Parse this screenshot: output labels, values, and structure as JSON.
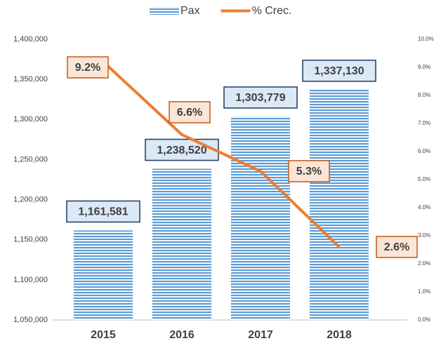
{
  "chart_data": {
    "type": "bar",
    "categories": [
      "2015",
      "2016",
      "2017",
      "2018"
    ],
    "series": [
      {
        "name": "Pax",
        "type": "bar",
        "color": "#5b9bd5",
        "values": [
          1161581,
          1238520,
          1303779,
          1337130
        ],
        "value_labels": [
          "1,161,581",
          "1,238,520",
          "1,303,779",
          "1,337,130"
        ]
      },
      {
        "name": "% Crec.",
        "type": "line",
        "axis": "y2",
        "color": "#ed7d31",
        "values": [
          9.2,
          6.6,
          5.3,
          2.6
        ],
        "value_labels": [
          "9.2%",
          "6.6%",
          "5.3%",
          "2.6%"
        ]
      }
    ],
    "ylim": [
      1050000,
      1400000
    ],
    "yticks": [
      {
        "value": 1050000,
        "label": "1,050,000"
      },
      {
        "value": 1100000,
        "label": "1,100,000"
      },
      {
        "value": 1150000,
        "label": "1,150,000"
      },
      {
        "value": 1200000,
        "label": "1,200,000"
      },
      {
        "value": 1250000,
        "label": "1,250,000"
      },
      {
        "value": 1300000,
        "label": "1,300,000"
      },
      {
        "value": 1350000,
        "label": "1,350,000"
      },
      {
        "value": 1400000,
        "label": "1,400,000"
      }
    ],
    "y2lim": [
      0,
      10
    ],
    "y2ticks": [
      {
        "value": 0,
        "label": "0.0%"
      },
      {
        "value": 1,
        "label": "1.0%"
      },
      {
        "value": 2,
        "label": "2.0%"
      },
      {
        "value": 3,
        "label": "3.0%"
      },
      {
        "value": 4,
        "label": "4.0%"
      },
      {
        "value": 5,
        "label": "5.0%"
      },
      {
        "value": 6,
        "label": "6.0%"
      },
      {
        "value": 7,
        "label": "7.0%"
      },
      {
        "value": 8,
        "label": "8.0%"
      },
      {
        "value": 9,
        "label": "9.0%"
      },
      {
        "value": 10,
        "label": "10.0%"
      }
    ],
    "grid": false,
    "legend": "top"
  }
}
